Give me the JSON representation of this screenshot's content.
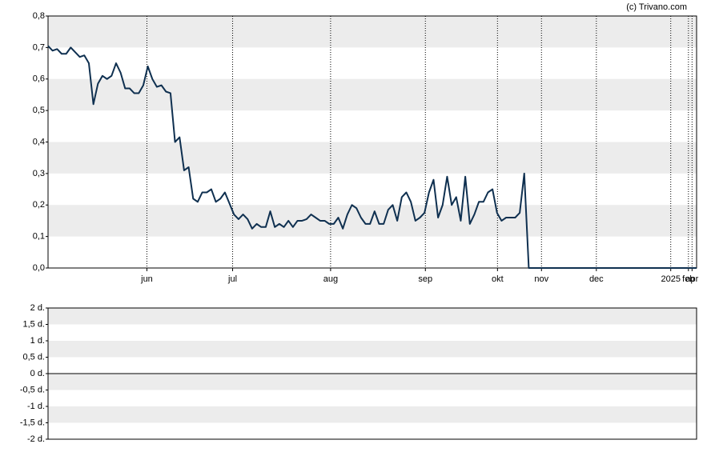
{
  "credit": "(c) Trivano.com",
  "chart_data": [
    {
      "type": "line",
      "x": [
        0,
        1,
        2,
        3,
        4,
        5,
        6,
        7,
        8,
        9,
        10,
        11,
        12,
        13,
        14,
        15,
        16,
        17,
        18,
        19,
        20,
        21,
        22,
        23,
        24,
        25,
        26,
        27,
        28,
        29,
        30,
        31,
        32,
        33,
        34,
        35,
        36,
        37,
        38,
        39,
        40,
        41,
        42,
        43,
        44,
        45,
        46,
        47,
        48,
        49,
        50,
        51,
        52,
        53,
        54,
        55,
        56,
        57,
        58,
        59,
        60,
        61,
        62,
        63,
        64,
        65,
        66,
        67,
        68,
        69,
        70,
        71,
        72,
        73,
        74,
        75,
        76,
        77,
        78,
        79,
        80,
        81,
        82,
        83,
        84,
        85,
        86,
        87,
        88,
        89,
        90,
        91,
        92,
        93,
        94,
        95,
        96,
        97,
        98,
        99,
        100,
        101,
        102,
        103,
        104,
        105,
        106,
        143
      ],
      "series": [
        {
          "color": "#0f3050",
          "values": [
            0.705,
            0.69,
            0.695,
            0.68,
            0.68,
            0.7,
            0.685,
            0.67,
            0.675,
            0.65,
            0.52,
            0.585,
            0.61,
            0.6,
            0.61,
            0.65,
            0.62,
            0.57,
            0.57,
            0.555,
            0.555,
            0.58,
            0.64,
            0.6,
            0.575,
            0.58,
            0.56,
            0.555,
            0.4,
            0.415,
            0.31,
            0.32,
            0.22,
            0.21,
            0.24,
            0.24,
            0.25,
            0.21,
            0.22,
            0.24,
            0.205,
            0.17,
            0.155,
            0.17,
            0.155,
            0.125,
            0.14,
            0.13,
            0.13,
            0.18,
            0.13,
            0.14,
            0.13,
            0.15,
            0.13,
            0.15,
            0.15,
            0.155,
            0.17,
            0.16,
            0.15,
            0.15,
            0.14,
            0.14,
            0.16,
            0.125,
            0.17,
            0.2,
            0.19,
            0.16,
            0.14,
            0.14,
            0.18,
            0.14,
            0.14,
            0.185,
            0.2,
            0.15,
            0.225,
            0.24,
            0.21,
            0.15,
            0.16,
            0.175,
            0.24,
            0.28,
            0.16,
            0.2,
            0.29,
            0.2,
            0.225,
            0.15,
            0.29,
            0.14,
            0.17,
            0.21,
            0.21,
            0.24,
            0.25,
            0.175,
            0.15,
            0.16,
            0.16,
            0.16,
            0.175,
            0.3,
            0,
            0
          ]
        }
      ],
      "xlim": [
        0,
        143
      ],
      "xticks": [
        {
          "value": 21.8,
          "label": "jun"
        },
        {
          "value": 40.7,
          "label": "jul"
        },
        {
          "value": 62.3,
          "label": "aug"
        },
        {
          "value": 83.2,
          "label": "sep"
        },
        {
          "value": 99.1,
          "label": "okt"
        },
        {
          "value": 108.8,
          "label": "nov"
        },
        {
          "value": 120.9,
          "label": "dec"
        },
        {
          "value": 137.3,
          "label": "2025"
        },
        {
          "value": 141.2,
          "label": "feb"
        },
        {
          "value": 142,
          "label": "apr"
        }
      ],
      "ylim": [
        0,
        0.8
      ],
      "yticks": [
        {
          "value": 0,
          "label": "0,0"
        },
        {
          "value": 0.1,
          "label": "0,1"
        },
        {
          "value": 0.2,
          "label": "0,2"
        },
        {
          "value": 0.3,
          "label": "0,3"
        },
        {
          "value": 0.4,
          "label": "0,4"
        },
        {
          "value": 0.5,
          "label": "0,5"
        },
        {
          "value": 0.6,
          "label": "0,6"
        },
        {
          "value": 0.7,
          "label": "0,7"
        },
        {
          "value": 0.8,
          "label": "0,8"
        }
      ],
      "grid": true
    },
    {
      "type": "bar",
      "ylim": [
        -2,
        2
      ],
      "yticks": [
        {
          "value": -2,
          "label": "-2 d."
        },
        {
          "value": -1.5,
          "label": "-1,5 d."
        },
        {
          "value": -1,
          "label": "-1 d."
        },
        {
          "value": -0.5,
          "label": "-0,5 d."
        },
        {
          "value": 0,
          "label": "0 d."
        },
        {
          "value": 0.5,
          "label": "0,5 d."
        },
        {
          "value": 1,
          "label": "1 d."
        },
        {
          "value": 1.5,
          "label": "1,5 d."
        },
        {
          "value": 2,
          "label": "2 d."
        }
      ],
      "grid": true
    }
  ]
}
